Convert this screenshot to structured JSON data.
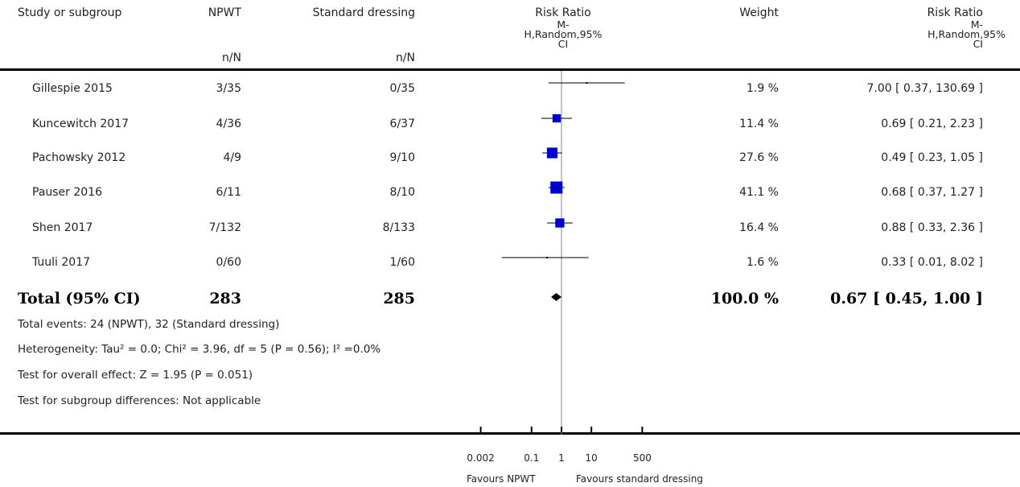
{
  "headers": {
    "study": "Study or subgroup",
    "group1": "NPWT",
    "group1_sub": "n/N",
    "group2": "Standard dressing",
    "group2_sub": "n/N",
    "plot_title": "Risk Ratio",
    "plot_sub1": "M-",
    "plot_sub2": "H,Random,95%",
    "plot_sub3": "CI",
    "weight": "Weight",
    "rr_title": "Risk Ratio",
    "rr_sub1": "M-",
    "rr_sub2": "H,Random,95%",
    "rr_sub3": "CI"
  },
  "studies": [
    {
      "name": "Gillespie 2015",
      "npwt": "3/35",
      "std": "0/35",
      "weight": "1.9 %",
      "ci_text": "7.00 [ 0.37, 130.69 ]"
    },
    {
      "name": "Kuncewitch 2017",
      "npwt": "4/36",
      "std": "6/37",
      "weight": "11.4 %",
      "ci_text": "0.69 [ 0.21, 2.23 ]"
    },
    {
      "name": "Pachowsky 2012",
      "npwt": "4/9",
      "std": "9/10",
      "weight": "27.6 %",
      "ci_text": "0.49 [ 0.23, 1.05 ]"
    },
    {
      "name": "Pauser 2016",
      "npwt": "6/11",
      "std": "8/10",
      "weight": "41.1 %",
      "ci_text": "0.68 [ 0.37, 1.27 ]"
    },
    {
      "name": "Shen 2017",
      "npwt": "7/132",
      "std": "8/133",
      "weight": "16.4 %",
      "ci_text": "0.88 [ 0.33, 2.36 ]"
    },
    {
      "name": "Tuuli 2017",
      "npwt": "0/60",
      "std": "1/60",
      "weight": "1.6 %",
      "ci_text": "0.33 [ 0.01, 8.02 ]"
    }
  ],
  "total": {
    "label": "Total (95% CI)",
    "npwt": "283",
    "std": "285",
    "weight": "100.0 %",
    "ci_text": "0.67 [ 0.45, 1.00 ]"
  },
  "footnotes": {
    "events": "Total events: 24 (NPWT), 32 (Standard dressing)",
    "heterogeneity": "Heterogeneity: Tau² = 0.0; Chi² = 3.96, df = 5 (P = 0.56); I² =0.0%",
    "overall": "Test for overall effect: Z = 1.95 (P = 0.051)",
    "subgroup": "Test for subgroup differences: Not applicable"
  },
  "axis": {
    "favours_left": "Favours NPWT",
    "favours_right": "Favours standard dressing"
  },
  "colors": {
    "marker": "#0000cc",
    "line": "#000000"
  },
  "chart_data": {
    "type": "forest",
    "scale": "log",
    "xlim": [
      0.002,
      500
    ],
    "ticks": [
      {
        "value": 0.002,
        "label": "0.002"
      },
      {
        "value": 0.1,
        "label": "0.1"
      },
      {
        "value": 1,
        "label": "1"
      },
      {
        "value": 10,
        "label": "10"
      },
      {
        "value": 500,
        "label": "500"
      }
    ],
    "null_value": 1,
    "studies": [
      {
        "name": "Gillespie 2015",
        "rr": 7.0,
        "lo": 0.37,
        "hi": 130.69,
        "weight": 1.9
      },
      {
        "name": "Kuncewitch 2017",
        "rr": 0.69,
        "lo": 0.21,
        "hi": 2.23,
        "weight": 11.4
      },
      {
        "name": "Pachowsky 2012",
        "rr": 0.49,
        "lo": 0.23,
        "hi": 1.05,
        "weight": 27.6
      },
      {
        "name": "Pauser 2016",
        "rr": 0.68,
        "lo": 0.37,
        "hi": 1.27,
        "weight": 41.1
      },
      {
        "name": "Shen 2017",
        "rr": 0.88,
        "lo": 0.33,
        "hi": 2.36,
        "weight": 16.4
      },
      {
        "name": "Tuuli 2017",
        "rr": 0.33,
        "lo": 0.01,
        "hi": 8.02,
        "weight": 1.6
      }
    ],
    "total": {
      "rr": 0.67,
      "lo": 0.45,
      "hi": 1.0
    }
  }
}
